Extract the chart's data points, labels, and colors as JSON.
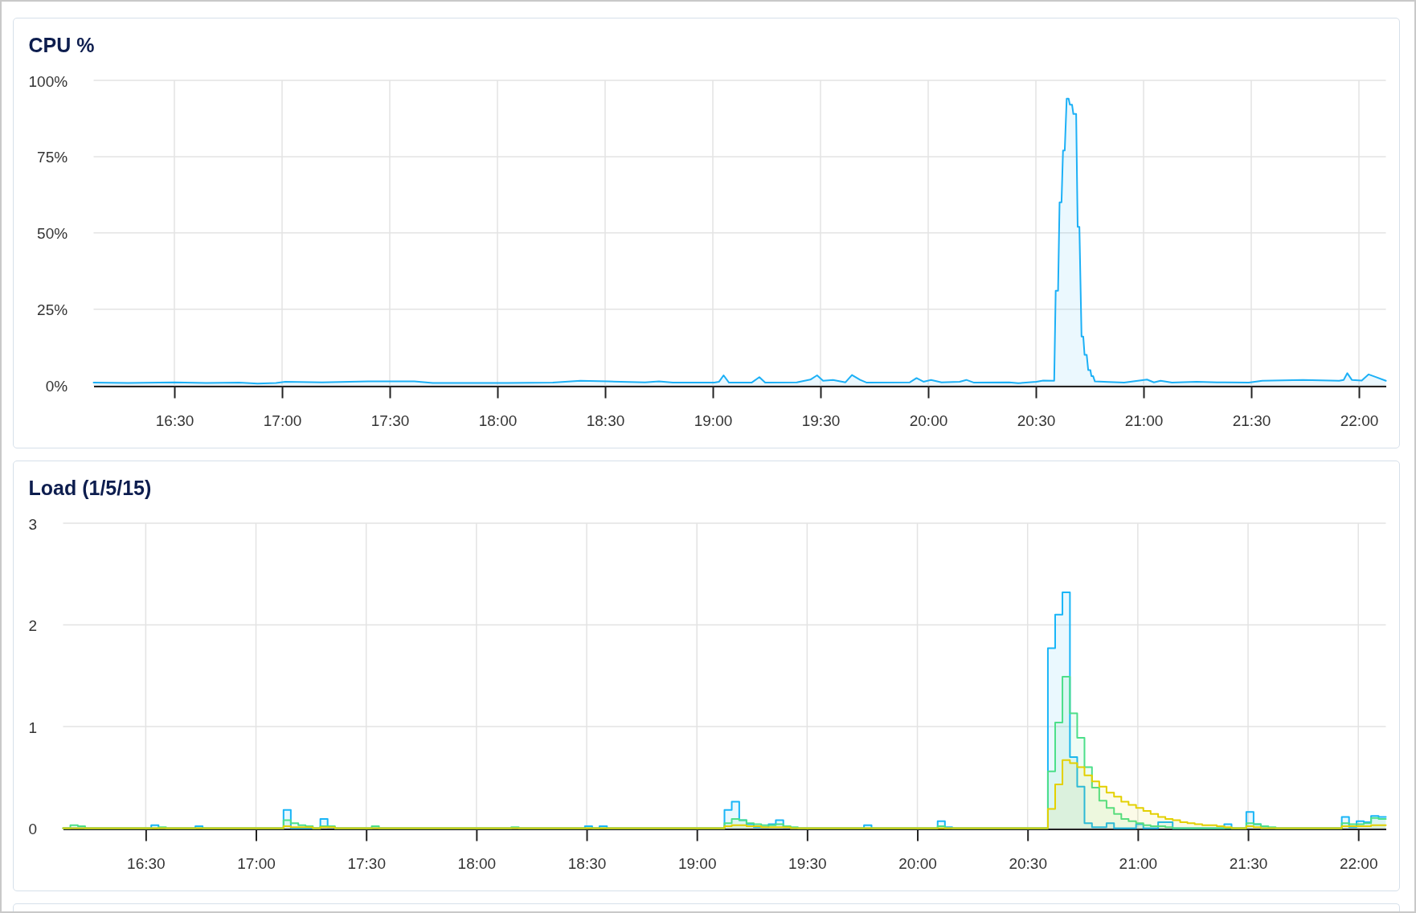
{
  "chart_data": [
    {
      "type": "area",
      "title": "CPU %",
      "color": "#1cb0f6",
      "x": [
        16.125,
        16.286,
        16.5,
        16.65,
        16.8,
        16.886,
        16.972,
        17.015,
        17.186,
        17.4,
        17.614,
        17.7,
        17.828,
        18.043,
        18.257,
        18.385,
        18.514,
        18.685,
        18.75,
        18.814,
        19.007,
        19.029,
        19.05,
        19.075,
        19.18,
        19.216,
        19.243,
        19.39,
        19.453,
        19.484,
        19.512,
        19.558,
        19.616,
        19.646,
        19.684,
        19.715,
        19.915,
        19.946,
        19.978,
        20.013,
        20.062,
        20.146,
        20.177,
        20.213,
        20.376,
        20.418,
        20.502,
        20.534,
        20.585,
        20.592,
        20.603,
        20.61,
        20.619,
        20.626,
        20.634,
        20.643,
        20.652,
        20.658,
        20.668,
        20.674,
        20.687,
        20.694,
        20.702,
        20.712,
        20.72,
        20.726,
        20.736,
        20.743,
        20.753,
        20.758,
        20.766,
        20.774,
        20.836,
        20.91,
        21.016,
        21.048,
        21.079,
        21.132,
        21.247,
        21.341,
        21.489,
        21.551,
        21.74,
        21.908,
        21.929,
        21.946,
        21.967,
        22.013,
        22.045,
        22.076,
        22.125
      ],
      "values": [
        0.9,
        0.8,
        1.0,
        0.8,
        0.9,
        0.6,
        0.8,
        1.2,
        1.0,
        1.3,
        1.3,
        0.8,
        0.8,
        0.8,
        0.9,
        1.5,
        1.3,
        1.0,
        1.3,
        0.9,
        0.9,
        1.2,
        3.3,
        0.9,
        0.9,
        2.7,
        0.9,
        1.0,
        1.9,
        3.3,
        1.5,
        1.8,
        1.0,
        3.4,
        1.8,
        0.9,
        1.0,
        2.4,
        1.2,
        1.8,
        1.0,
        1.2,
        1.8,
        0.9,
        1.0,
        0.7,
        1.2,
        1.6,
        1.5,
        31,
        31,
        60,
        60,
        77,
        77,
        94,
        94,
        92,
        92,
        89,
        89,
        52,
        52,
        16,
        16,
        10,
        10,
        5,
        5,
        3,
        3,
        1.3,
        1.1,
        0.9,
        1.9,
        1.0,
        1.5,
        0.9,
        1.2,
        1.0,
        0.9,
        1.5,
        1.8,
        1.5,
        1.8,
        4.0,
        1.8,
        1.6,
        3.6,
        2.8,
        1.5
      ],
      "xlim": [
        16.125,
        22.125
      ],
      "xticks": [
        {
          "value": 16.5,
          "label": "16:30"
        },
        {
          "value": 17,
          "label": "17:00"
        },
        {
          "value": 17.5,
          "label": "17:30"
        },
        {
          "value": 18,
          "label": "18:00"
        },
        {
          "value": 18.5,
          "label": "18:30"
        },
        {
          "value": 19,
          "label": "19:00"
        },
        {
          "value": 19.5,
          "label": "19:30"
        },
        {
          "value": 20,
          "label": "20:00"
        },
        {
          "value": 20.5,
          "label": "20:30"
        },
        {
          "value": 21,
          "label": "21:00"
        },
        {
          "value": 21.5,
          "label": "21:30"
        },
        {
          "value": 22,
          "label": "22:00"
        }
      ],
      "ylim": [
        0,
        100
      ],
      "yticks": [
        {
          "value": 0,
          "label": "0%"
        },
        {
          "value": 25,
          "label": "25%"
        },
        {
          "value": 50,
          "label": "50%"
        },
        {
          "value": 75,
          "label": "75%"
        },
        {
          "value": 100,
          "label": "100%"
        }
      ],
      "grid": true
    },
    {
      "type": "step",
      "title": "Load (1/5/15)",
      "series": [
        {
          "color": "#19b5f7",
          "x": [
            16.125,
            16.525,
            16.558,
            16.725,
            16.758,
            17.125,
            17.158,
            17.292,
            17.325,
            17.358,
            18.492,
            18.525,
            18.558,
            18.592,
            19.125,
            19.158,
            19.192,
            19.225,
            19.258,
            19.325,
            19.358,
            19.392,
            19.425,
            19.758,
            19.792,
            20.092,
            20.125,
            20.158,
            20.592,
            20.625,
            20.658,
            20.692,
            20.725,
            20.758,
            20.792,
            20.858,
            20.892,
            20.992,
            21.025,
            21.092,
            21.158,
            21.392,
            21.425,
            21.492,
            21.525,
            21.558,
            21.925,
            21.958,
            21.992,
            22.025,
            22.058,
            22.092,
            22.125
          ],
          "values": [
            0,
            0.03,
            0,
            0.02,
            0,
            0.18,
            0,
            0.09,
            0.01,
            0,
            0.02,
            0,
            0.02,
            0,
            0.18,
            0.26,
            0.08,
            0.04,
            0.01,
            0.04,
            0.08,
            0.01,
            0,
            0.03,
            0,
            0.07,
            0.01,
            0,
            1.77,
            2.1,
            2.32,
            0.7,
            0.41,
            0.05,
            0.01,
            0.05,
            0,
            0.04,
            0,
            0.06,
            0,
            0.04,
            0,
            0.16,
            0.04,
            0,
            0.11,
            0.01,
            0.07,
            0.06,
            0.12,
            0.11,
            0.11
          ]
        },
        {
          "color": "#4cdf8a",
          "x": [
            16.125,
            16.158,
            16.192,
            16.225,
            16.558,
            16.592,
            17.125,
            17.158,
            17.192,
            17.225,
            17.258,
            17.292,
            17.358,
            17.525,
            17.558,
            18.158,
            18.192,
            19.125,
            19.158,
            19.192,
            19.225,
            19.258,
            19.292,
            19.358,
            19.392,
            19.425,
            19.458,
            20.092,
            20.125,
            20.592,
            20.625,
            20.658,
            20.692,
            20.725,
            20.758,
            20.792,
            20.825,
            20.858,
            20.892,
            20.925,
            20.958,
            20.992,
            21.025,
            21.058,
            21.125,
            21.158,
            21.492,
            21.525,
            21.558,
            21.592,
            21.625,
            21.925,
            21.958,
            21.992,
            22.025,
            22.058,
            22.092,
            22.125
          ],
          "values": [
            0,
            0.03,
            0.02,
            0,
            0.01,
            0,
            0.08,
            0.05,
            0.03,
            0.02,
            0,
            0.02,
            0,
            0.02,
            0,
            0.01,
            0,
            0.05,
            0.09,
            0.08,
            0.05,
            0.04,
            0.03,
            0.04,
            0.02,
            0.01,
            0,
            0.02,
            0,
            0.56,
            1.04,
            1.49,
            1.13,
            0.89,
            0.6,
            0.4,
            0.27,
            0.2,
            0.14,
            0.09,
            0.07,
            0.05,
            0.03,
            0.02,
            0.01,
            0,
            0.05,
            0.04,
            0.02,
            0.01,
            0,
            0.05,
            0.04,
            0.04,
            0.05,
            0.1,
            0.09,
            0.09
          ]
        },
        {
          "color": "#e3d000",
          "x": [
            16.125,
            17.125,
            17.158,
            17.258,
            17.292,
            17.358,
            19.125,
            19.158,
            19.225,
            19.292,
            19.425,
            20.592,
            20.625,
            20.658,
            20.692,
            20.725,
            20.758,
            20.792,
            20.825,
            20.858,
            20.892,
            20.925,
            20.958,
            20.992,
            21.025,
            21.058,
            21.092,
            21.125,
            21.158,
            21.192,
            21.225,
            21.258,
            21.292,
            21.325,
            21.358,
            21.392,
            21.425,
            21.492,
            21.525,
            21.558,
            21.925,
            22.058,
            22.125
          ],
          "values": [
            0,
            0.02,
            0.01,
            0,
            0.01,
            0,
            0.02,
            0.03,
            0.02,
            0.01,
            0,
            0.19,
            0.43,
            0.67,
            0.64,
            0.6,
            0.52,
            0.46,
            0.41,
            0.35,
            0.31,
            0.26,
            0.23,
            0.2,
            0.17,
            0.14,
            0.11,
            0.09,
            0.08,
            0.06,
            0.05,
            0.04,
            0.03,
            0.03,
            0.02,
            0.01,
            0,
            0.02,
            0.01,
            0,
            0.02,
            0.03,
            0.03
          ]
        }
      ],
      "xlim": [
        16.125,
        22.125
      ],
      "xticks": [
        {
          "value": 16.5,
          "label": "16:30"
        },
        {
          "value": 17,
          "label": "17:00"
        },
        {
          "value": 17.5,
          "label": "17:30"
        },
        {
          "value": 18,
          "label": "18:00"
        },
        {
          "value": 18.5,
          "label": "18:30"
        },
        {
          "value": 19,
          "label": "19:00"
        },
        {
          "value": 19.5,
          "label": "19:30"
        },
        {
          "value": 20,
          "label": "20:00"
        },
        {
          "value": 20.5,
          "label": "20:30"
        },
        {
          "value": 21,
          "label": "21:00"
        },
        {
          "value": 21.5,
          "label": "21:30"
        },
        {
          "value": 22,
          "label": "22:00"
        }
      ],
      "ylim": [
        0,
        3
      ],
      "yticks": [
        0,
        1,
        2,
        3
      ],
      "grid": true
    }
  ]
}
